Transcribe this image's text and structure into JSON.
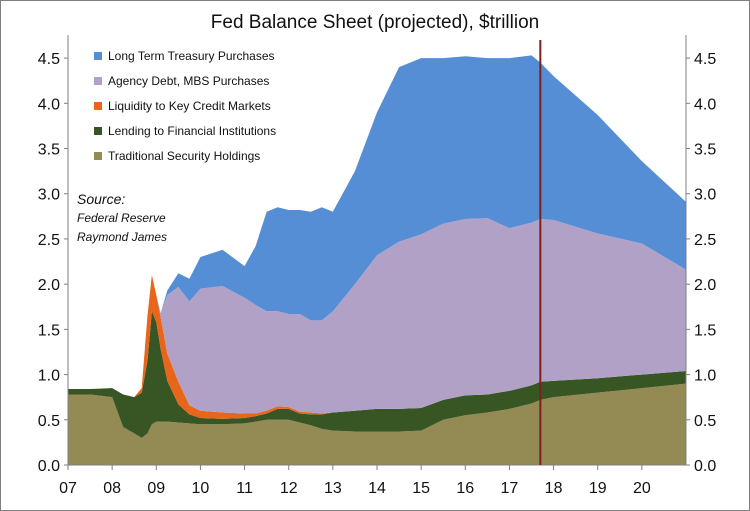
{
  "chart_data": {
    "type": "area",
    "title": "Fed Balance Sheet (projected), $trillion",
    "xlabel": "",
    "ylabel": "",
    "stacked": true,
    "x_ticks": [
      "07",
      "08",
      "09",
      "10",
      "11",
      "12",
      "13",
      "14",
      "15",
      "16",
      "17",
      "18",
      "19",
      "20"
    ],
    "y_ticks": [
      "0.0",
      "0.5",
      "1.0",
      "1.5",
      "2.0",
      "2.5",
      "3.0",
      "3.5",
      "4.0",
      "4.5"
    ],
    "ylim": [
      0,
      4.7
    ],
    "xlim": [
      2007,
      2021
    ],
    "vertical_marker_x": 2017.7,
    "x": [
      2007.0,
      2007.5,
      2008.0,
      2008.25,
      2008.5,
      2008.67,
      2008.8,
      2008.9,
      2009.0,
      2009.1,
      2009.25,
      2009.5,
      2009.75,
      2010.0,
      2010.5,
      2011.0,
      2011.25,
      2011.5,
      2011.75,
      2012.0,
      2012.25,
      2012.5,
      2012.75,
      2013.0,
      2013.5,
      2014.0,
      2014.5,
      2015.0,
      2015.5,
      2016.0,
      2016.5,
      2017.0,
      2017.5,
      2017.7,
      2018.0,
      2019.0,
      2020.0,
      2021.0
    ],
    "series": [
      {
        "name": "Traditional Security Holdings",
        "color": "#948a54",
        "values": [
          0.78,
          0.78,
          0.75,
          0.42,
          0.35,
          0.3,
          0.35,
          0.45,
          0.48,
          0.48,
          0.48,
          0.47,
          0.46,
          0.45,
          0.45,
          0.46,
          0.48,
          0.5,
          0.5,
          0.5,
          0.47,
          0.44,
          0.4,
          0.38,
          0.37,
          0.37,
          0.37,
          0.38,
          0.5,
          0.55,
          0.58,
          0.62,
          0.68,
          0.72,
          0.75,
          0.8,
          0.85,
          0.9
        ]
      },
      {
        "name": "Lending to Financial Institutions",
        "color": "#375623",
        "values": [
          0.06,
          0.06,
          0.1,
          0.36,
          0.4,
          0.5,
          0.8,
          1.25,
          1.1,
          0.8,
          0.45,
          0.2,
          0.1,
          0.07,
          0.06,
          0.06,
          0.06,
          0.07,
          0.12,
          0.12,
          0.1,
          0.12,
          0.16,
          0.2,
          0.23,
          0.25,
          0.25,
          0.25,
          0.22,
          0.22,
          0.2,
          0.2,
          0.2,
          0.2,
          0.18,
          0.16,
          0.15,
          0.14
        ]
      },
      {
        "name": "Liquidity to Key Credit Markets",
        "color": "#e8651a",
        "values": [
          0.0,
          0.0,
          0.0,
          0.0,
          0.0,
          0.05,
          0.5,
          0.4,
          0.3,
          0.35,
          0.3,
          0.25,
          0.1,
          0.08,
          0.07,
          0.05,
          0.03,
          0.03,
          0.03,
          0.02,
          0.02,
          0.02,
          0.01,
          0.0,
          0.0,
          0.0,
          0.0,
          0.0,
          0.0,
          0.0,
          0.0,
          0.0,
          0.0,
          0.0,
          0.0,
          0.0,
          0.0,
          0.0
        ]
      },
      {
        "name": "Agency Debt, MBS Purchases",
        "color": "#b2a1c7",
        "values": [
          0.0,
          0.0,
          0.0,
          0.0,
          0.0,
          0.0,
          0.0,
          0.0,
          0.0,
          0.05,
          0.65,
          1.05,
          1.15,
          1.35,
          1.4,
          1.28,
          1.2,
          1.1,
          1.05,
          1.03,
          1.08,
          1.02,
          1.03,
          1.12,
          1.4,
          1.7,
          1.85,
          1.92,
          1.95,
          1.95,
          1.95,
          1.8,
          1.8,
          1.8,
          1.78,
          1.6,
          1.45,
          1.12
        ]
      },
      {
        "name": "Long Term Treasury Purchases",
        "color": "#558ed5",
        "values": [
          0.0,
          0.0,
          0.0,
          0.0,
          0.0,
          0.0,
          0.0,
          0.0,
          0.0,
          0.0,
          0.05,
          0.15,
          0.25,
          0.35,
          0.4,
          0.35,
          0.65,
          1.1,
          1.15,
          1.15,
          1.15,
          1.2,
          1.25,
          1.1,
          1.25,
          1.58,
          1.93,
          1.95,
          1.83,
          1.8,
          1.77,
          1.88,
          1.85,
          1.73,
          1.59,
          1.31,
          0.91,
          0.75
        ]
      }
    ],
    "legend_position": "top-left",
    "annotations": [
      {
        "label": "Source:",
        "lines": [
          "Federal Reserve",
          "Raymond James"
        ]
      }
    ]
  }
}
